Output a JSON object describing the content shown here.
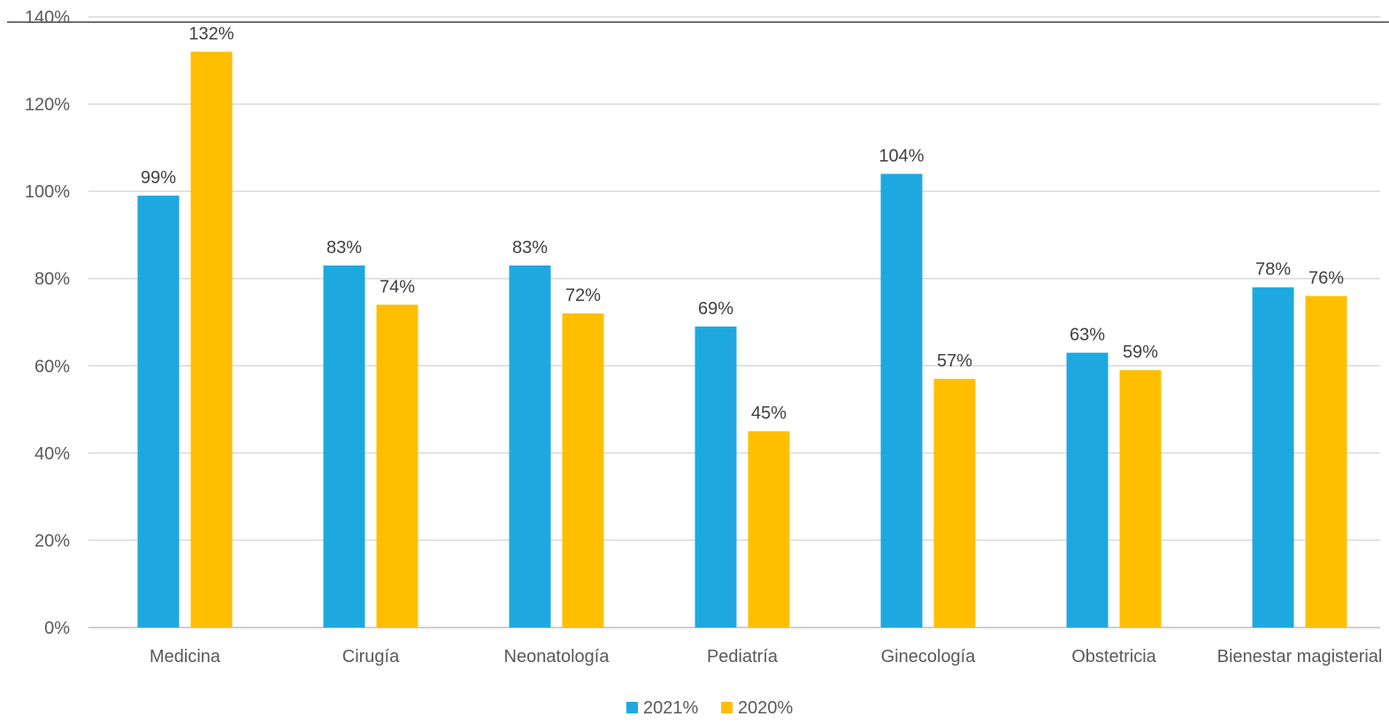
{
  "chart_data": {
    "type": "bar",
    "title": "",
    "xlabel": "",
    "ylabel": "",
    "categories": [
      "Medicina",
      "Cirugía",
      "Neonatología",
      "Pediatría",
      "Ginecología",
      "Obstetricia",
      "Bienestar magisterial"
    ],
    "series": [
      {
        "name": "2021%",
        "color": "#1ea8e0",
        "values": [
          99,
          83,
          83,
          69,
          104,
          63,
          78
        ],
        "labels": [
          "99%",
          "83%",
          "83%",
          "69%",
          "104%",
          "63%",
          "78%"
        ]
      },
      {
        "name": "2020%",
        "color": "#ffbf00",
        "values": [
          132,
          74,
          72,
          45,
          57,
          59,
          76
        ],
        "labels": [
          "132%",
          "74%",
          "72%",
          "45%",
          "57%",
          "59%",
          "76%"
        ]
      }
    ],
    "ylim": [
      0,
      140
    ],
    "yticks": [
      0,
      20,
      40,
      60,
      80,
      100,
      120,
      140
    ],
    "ytick_labels": [
      "0%",
      "20%",
      "40%",
      "60%",
      "80%",
      "100%",
      "120%",
      "140%"
    ],
    "grid": true,
    "legend_position": "bottom-center"
  }
}
